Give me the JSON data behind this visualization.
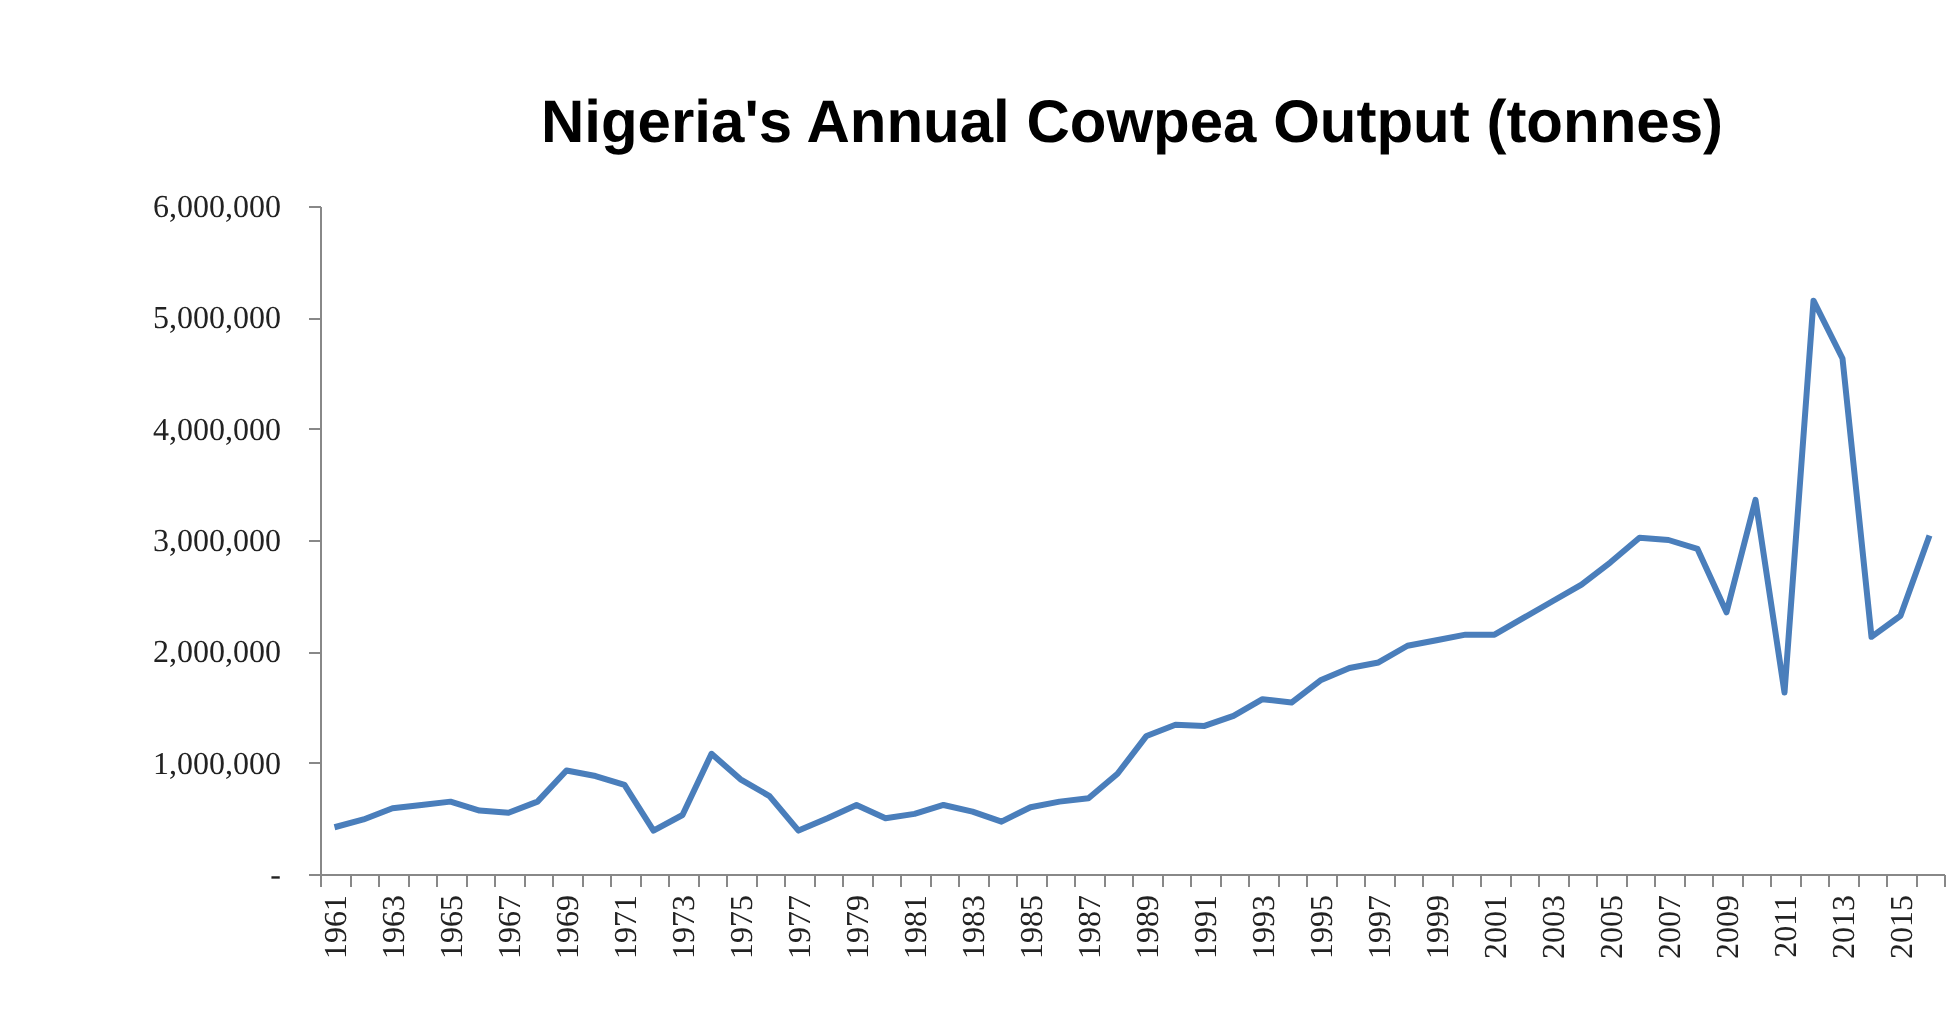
{
  "chart_data": {
    "type": "line",
    "title": "Nigeria's Annual Cowpea Output (tonnes)",
    "categories": [
      "1961",
      null,
      "1963",
      null,
      "1965",
      null,
      "1967",
      null,
      "1969",
      null,
      "1971",
      null,
      "1973",
      null,
      "1975",
      null,
      "1977",
      null,
      "1979",
      null,
      "1981",
      null,
      "1983",
      null,
      "1985",
      null,
      "1987",
      null,
      "1989",
      null,
      "1991",
      null,
      "1993",
      null,
      "1995",
      null,
      "1997",
      null,
      "1999",
      null,
      "2001",
      null,
      "2003",
      null,
      "2005",
      null,
      "2007",
      null,
      "2009",
      null,
      "2011",
      null,
      "2013",
      null,
      "2015",
      null
    ],
    "series": [
      {
        "color": "#4a7ebb",
        "values": [
          420000,
          490000,
          590000,
          620000,
          650000,
          570000,
          550000,
          650000,
          930000,
          880000,
          800000,
          390000,
          530000,
          1080000,
          850000,
          700000,
          390000,
          500000,
          620000,
          500000,
          540000,
          620000,
          560000,
          470000,
          600000,
          650000,
          680000,
          900000,
          1240000,
          1340000,
          1330000,
          1420000,
          1570000,
          1540000,
          1740000,
          1850000,
          1900000,
          2050000,
          2100000,
          2150000,
          2150000,
          2300000,
          2450000,
          2600000,
          2800000,
          3020000,
          3000000,
          2920000,
          2350000,
          3360000,
          1630000,
          5150000,
          4630000,
          2130000,
          2320000,
          3040000
        ]
      }
    ],
    "ylim": [
      0,
      6000000
    ],
    "yticks": [
      {
        "value": 0,
        "label": "-"
      },
      {
        "value": 1000000,
        "label": "1,000,000"
      },
      {
        "value": 2000000,
        "label": "2,000,000"
      },
      {
        "value": 3000000,
        "label": "3,000,000"
      },
      {
        "value": 4000000,
        "label": "4,000,000"
      },
      {
        "value": 5000000,
        "label": "5,000,000"
      },
      {
        "value": 6000000,
        "label": "6,000,000"
      }
    ],
    "grid": false,
    "legend": false,
    "marker": "none",
    "line_style": "solid"
  }
}
